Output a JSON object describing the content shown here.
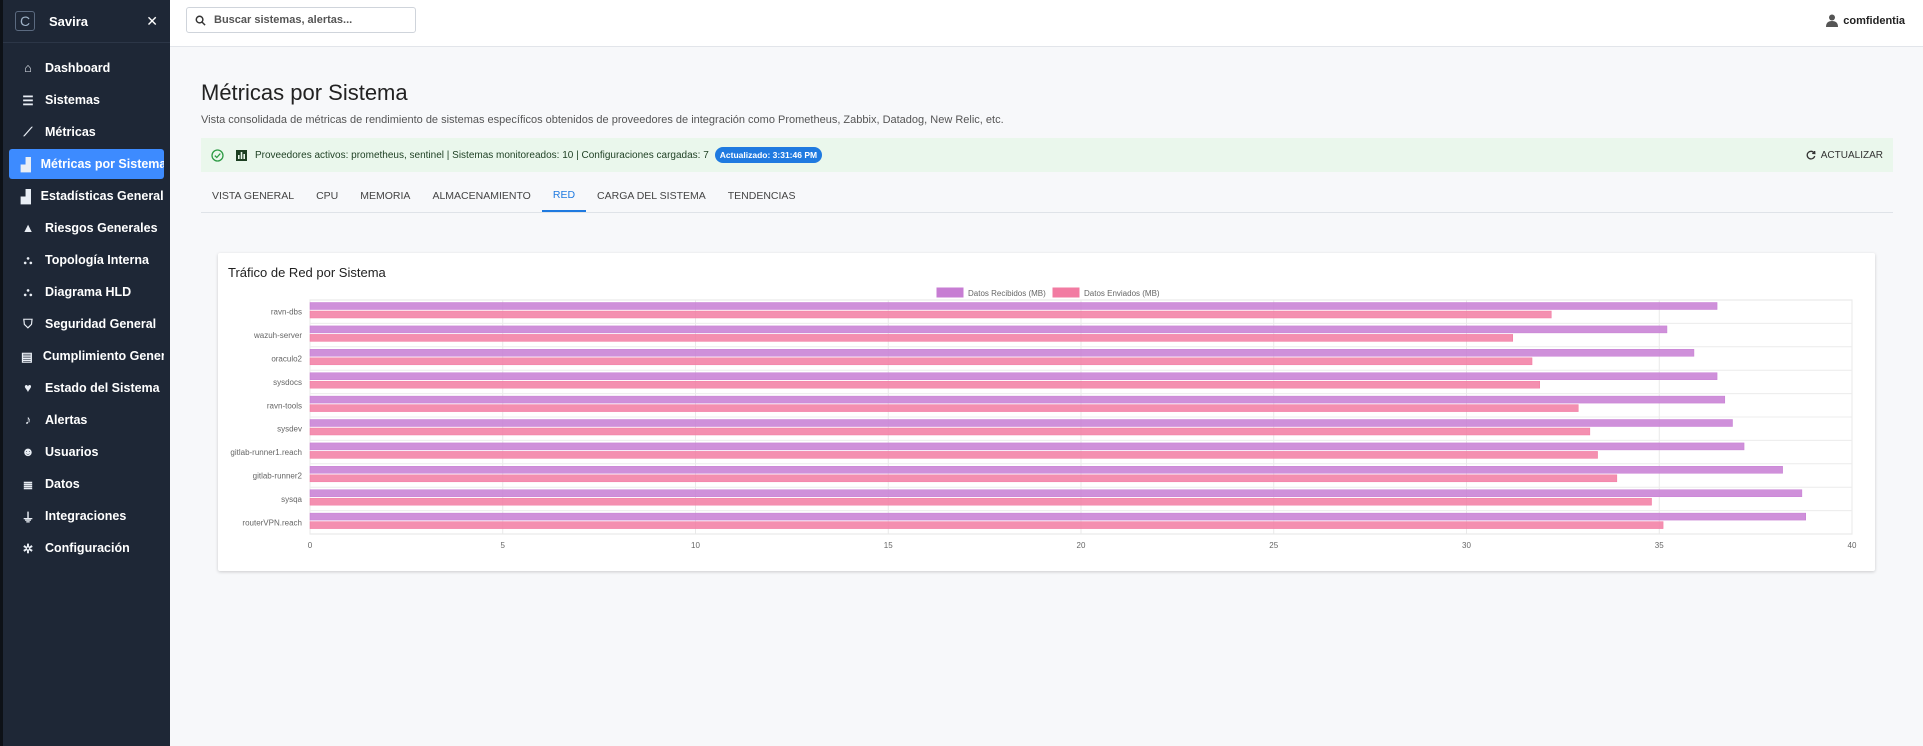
{
  "sidebar": {
    "brand": "Savira",
    "items": [
      {
        "label": "Dashboard",
        "icon": "home-icon"
      },
      {
        "label": "Sistemas",
        "icon": "server-icon"
      },
      {
        "label": "Métricas",
        "icon": "line-chart-icon"
      },
      {
        "label": "Métricas por Sistema",
        "icon": "area-chart-icon",
        "active": true
      },
      {
        "label": "Estadísticas Generales",
        "icon": "area-chart-icon"
      },
      {
        "label": "Riesgos Generales",
        "icon": "warning-icon"
      },
      {
        "label": "Topología Interna",
        "icon": "network-icon"
      },
      {
        "label": "Diagrama HLD",
        "icon": "network-icon"
      },
      {
        "label": "Seguridad General",
        "icon": "shield-icon"
      },
      {
        "label": "Cumplimiento General",
        "icon": "clipboard-icon"
      },
      {
        "label": "Estado del Sistema",
        "icon": "heartbeat-icon"
      },
      {
        "label": "Alertas",
        "icon": "bell-icon"
      },
      {
        "label": "Usuarios",
        "icon": "users-icon"
      },
      {
        "label": "Datos",
        "icon": "database-icon"
      },
      {
        "label": "Integraciones",
        "icon": "plug-icon"
      },
      {
        "label": "Configuración",
        "icon": "gear-icon"
      }
    ]
  },
  "topbar": {
    "search_placeholder": "Buscar sistemas, alertas...",
    "user": "comfidentia"
  },
  "page": {
    "title": "Métricas por Sistema",
    "subtitle": "Vista consolidada de métricas de rendimiento de sistemas específicos obtenidos de proveedores de integración como Prometheus, Zabbix, Datadog, New Relic, etc.",
    "status_text": "Proveedores activos: prometheus, sentinel | Sistemas monitoreados: 10 | Configuraciones cargadas: 7",
    "updated_chip": "Actualizado: 3:31:46 PM",
    "refresh_label": "ACTUALIZAR"
  },
  "tabs": [
    {
      "label": "VISTA GENERAL"
    },
    {
      "label": "CPU"
    },
    {
      "label": "MEMORIA"
    },
    {
      "label": "ALMACENAMIENTO"
    },
    {
      "label": "RED",
      "active": true
    },
    {
      "label": "CARGA DEL SISTEMA"
    },
    {
      "label": "TENDENCIAS"
    }
  ],
  "colors": {
    "received": "#c77dd3",
    "sent": "#f27ba2",
    "accent": "#1f7ae0",
    "sidebar_bg": "#1e2736"
  },
  "chart_data": {
    "type": "bar",
    "orientation": "horizontal",
    "title": "Tráfico de Red por Sistema",
    "categories": [
      "ravn-dbs",
      "wazuh-server",
      "oraculo2",
      "sysdocs",
      "ravn-tools",
      "sysdev",
      "gitlab-runner1.reach",
      "gitlab-runner2",
      "sysqa",
      "routerVPN.reach"
    ],
    "series": [
      {
        "name": "Datos Recibidos (MB)",
        "values": [
          36.5,
          35.2,
          35.9,
          36.5,
          36.7,
          36.9,
          37.2,
          38.2,
          38.7,
          38.8
        ]
      },
      {
        "name": "Datos Enviados (MB)",
        "values": [
          32.2,
          31.2,
          31.7,
          31.9,
          32.9,
          33.2,
          33.4,
          33.9,
          34.8,
          35.1
        ]
      }
    ],
    "xlim": [
      0,
      40
    ],
    "xticks": [
      0,
      5,
      10,
      15,
      20,
      25,
      30,
      35,
      40
    ],
    "legend": "top-center",
    "grid": true
  }
}
